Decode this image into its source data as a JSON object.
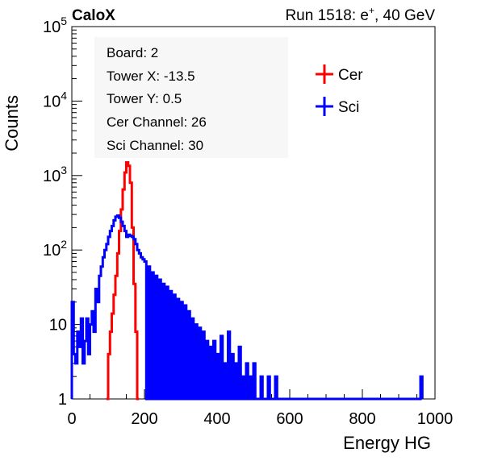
{
  "header": {
    "logo": "CaloX",
    "run_label": "Run 1518: e",
    "run_sup": "+",
    "run_suffix": ", 40 GeV"
  },
  "info_box": [
    "Board: 2",
    "Tower X: -13.5",
    "Tower Y: 0.5",
    "Cer Channel: 26",
    "Sci Channel: 30"
  ],
  "chart_data": {
    "type": "line",
    "xlabel": "Energy HG",
    "ylabel": "Counts",
    "xlim": [
      0,
      1000
    ],
    "ylim": [
      1,
      100000
    ],
    "yscale": "log",
    "x_ticks": [
      0,
      200,
      400,
      600,
      800,
      1000
    ],
    "y_ticks": [
      {
        "value": 1,
        "base": "1",
        "exp": ""
      },
      {
        "value": 10,
        "base": "10",
        "exp": ""
      },
      {
        "value": 100,
        "base": "10",
        "exp": "2"
      },
      {
        "value": 1000,
        "base": "10",
        "exp": "3"
      },
      {
        "value": 10000,
        "base": "10",
        "exp": "4"
      },
      {
        "value": 100000,
        "base": "10",
        "exp": "5"
      }
    ],
    "legend_position": "top-right",
    "series": [
      {
        "name": "Cer",
        "color": "#ff0000",
        "x": [
          95,
          100,
          105,
          110,
          115,
          120,
          125,
          130,
          135,
          140,
          145,
          150,
          155,
          160,
          165,
          170,
          175,
          180
        ],
        "y": [
          1,
          4,
          8,
          14,
          25,
          45,
          90,
          180,
          350,
          650,
          1100,
          1500,
          1350,
          800,
          200,
          35,
          8,
          1
        ]
      },
      {
        "name": "Sci",
        "color": "#0000ff",
        "x": [
          0,
          5,
          10,
          15,
          20,
          25,
          30,
          35,
          40,
          45,
          50,
          55,
          60,
          65,
          70,
          75,
          80,
          85,
          90,
          95,
          100,
          105,
          110,
          115,
          120,
          125,
          130,
          135,
          140,
          145,
          150,
          155,
          160,
          165,
          170,
          175,
          180,
          185,
          190,
          195,
          200,
          210,
          220,
          230,
          240,
          250,
          260,
          270,
          280,
          290,
          300,
          310,
          320,
          330,
          340,
          350,
          360,
          370,
          380,
          390,
          400,
          410,
          420,
          430,
          440,
          450,
          460,
          470,
          480,
          490,
          500,
          520,
          540,
          560,
          580,
          600,
          960
        ],
        "y": [
          20,
          4,
          3,
          8,
          5,
          12,
          3,
          6,
          12,
          4,
          10,
          15,
          8,
          30,
          20,
          45,
          60,
          80,
          100,
          120,
          150,
          180,
          210,
          250,
          280,
          290,
          270,
          240,
          210,
          180,
          150,
          160,
          155,
          150,
          140,
          120,
          100,
          90,
          80,
          75,
          70,
          60,
          50,
          45,
          40,
          35,
          32,
          28,
          25,
          22,
          20,
          18,
          15,
          12,
          10,
          9,
          8,
          6,
          5,
          6,
          4,
          7,
          3,
          8,
          4,
          3,
          5,
          2,
          3,
          2,
          3,
          2,
          2,
          2,
          1,
          1,
          2
        ]
      }
    ]
  }
}
